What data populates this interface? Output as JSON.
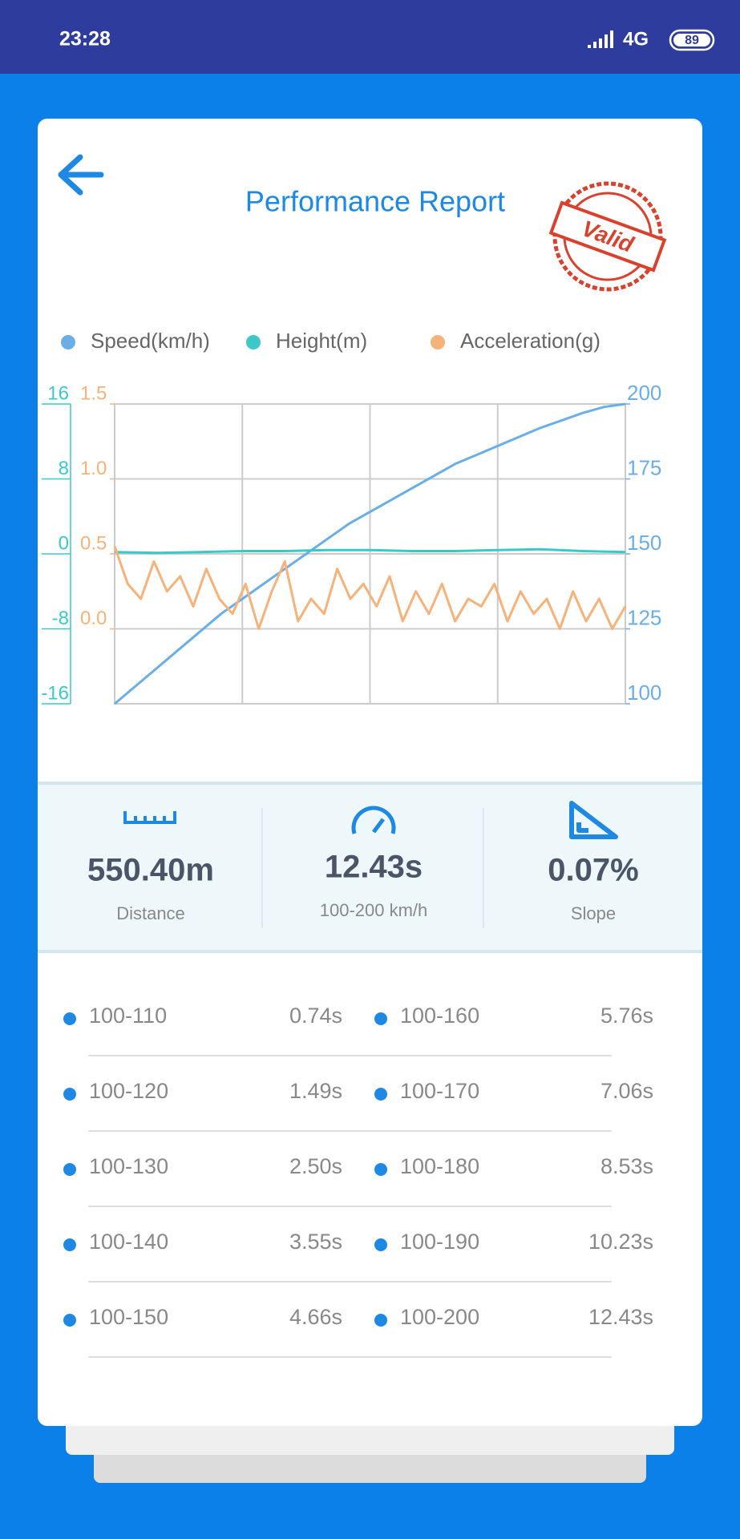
{
  "status_bar": {
    "time": "23:28",
    "network": "4G",
    "battery": "89"
  },
  "header": {
    "title": "Performance Report",
    "stamp": "Valid"
  },
  "chart_data": {
    "type": "line",
    "series": [
      {
        "name": "Speed(km/h)",
        "color": "#6aaee8",
        "axis": "y2",
        "values": [
          100,
          106,
          112,
          118,
          124,
          130,
          135,
          140,
          145,
          150,
          155,
          160,
          164,
          168,
          172,
          176,
          180,
          183,
          186,
          189,
          192,
          194.5,
          197,
          199,
          200
        ]
      },
      {
        "name": "Height(m)",
        "color": "#3cc8c8",
        "axis": "y",
        "values": [
          0.2,
          0.1,
          0.2,
          0.3,
          0.3,
          0.4,
          0.4,
          0.3,
          0.3,
          0.4,
          0.5,
          0.3,
          0.2
        ]
      },
      {
        "name": "Acceleration(g)",
        "color": "#f7b27a",
        "axis": "y3",
        "values": [
          0.55,
          0.3,
          0.2,
          0.45,
          0.25,
          0.35,
          0.15,
          0.4,
          0.2,
          0.1,
          0.3,
          0.0,
          0.25,
          0.45,
          0.05,
          0.2,
          0.1,
          0.4,
          0.2,
          0.3,
          0.15,
          0.35,
          0.05,
          0.25,
          0.1,
          0.3,
          0.05,
          0.2,
          0.15,
          0.3,
          0.05,
          0.25,
          0.1,
          0.2,
          0.0,
          0.25,
          0.05,
          0.2,
          0.0,
          0.15
        ]
      }
    ],
    "ylim": [
      -16,
      16
    ],
    "yticks": [
      16,
      8,
      0,
      -8,
      -16
    ],
    "y3lim": [
      -0.5,
      1.5
    ],
    "y3ticks": [
      {
        "value": 0,
        "label": "0.0"
      },
      0.5,
      {
        "value": 1,
        "label": "1.0"
      },
      1.5
    ],
    "y2lim": [
      100,
      200
    ],
    "y2ticks": [
      200,
      175,
      150,
      125,
      100
    ],
    "grid": true
  },
  "stats": [
    {
      "value": "550.40m",
      "label": "Distance"
    },
    {
      "value": "12.43s",
      "label": "100-200 km/h"
    },
    {
      "value": "0.07%",
      "label": "Slope"
    }
  ],
  "splits": [
    {
      "range": "100-110",
      "time": "0.74s"
    },
    {
      "range": "100-160",
      "time": "5.76s"
    },
    {
      "range": "100-120",
      "time": "1.49s"
    },
    {
      "range": "100-170",
      "time": "7.06s"
    },
    {
      "range": "100-130",
      "time": "2.50s"
    },
    {
      "range": "100-180",
      "time": "8.53s"
    },
    {
      "range": "100-140",
      "time": "3.55s"
    },
    {
      "range": "100-190",
      "time": "10.23s"
    },
    {
      "range": "100-150",
      "time": "4.66s"
    },
    {
      "range": "100-200",
      "time": "12.43s"
    }
  ]
}
